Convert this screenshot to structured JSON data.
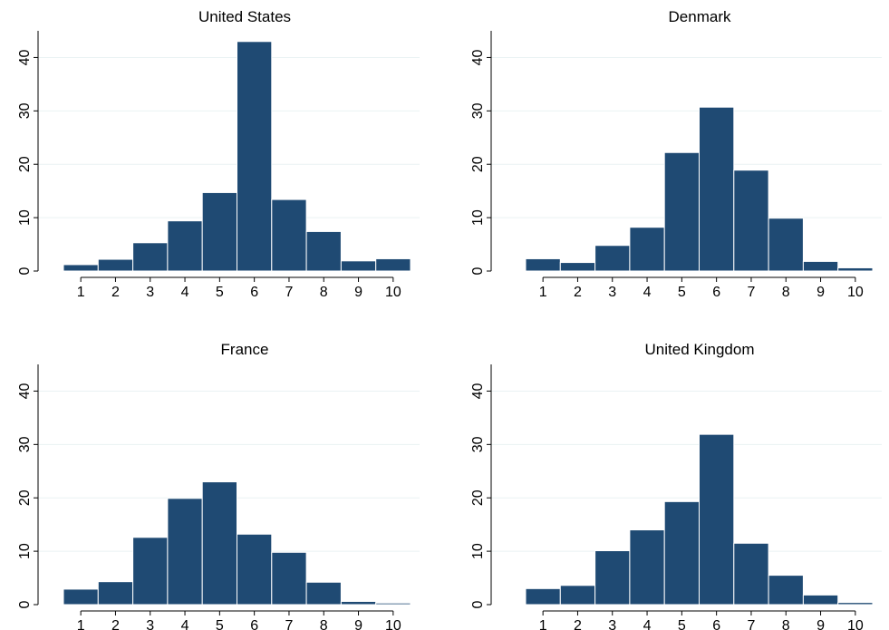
{
  "chart_data": [
    {
      "type": "bar",
      "title": "United States",
      "categories": [
        "1",
        "2",
        "3",
        "4",
        "5",
        "6",
        "7",
        "8",
        "9",
        "10"
      ],
      "values": [
        1.2,
        2.2,
        5.3,
        9.4,
        14.7,
        43.0,
        13.4,
        7.4,
        1.9,
        2.3
      ],
      "y_ticks": [
        0,
        10,
        20,
        30,
        40
      ],
      "ylim": [
        0,
        45
      ],
      "grid": true,
      "bar_color": "#1f4a73"
    },
    {
      "type": "bar",
      "title": "Denmark",
      "categories": [
        "1",
        "2",
        "3",
        "4",
        "5",
        "6",
        "7",
        "8",
        "9",
        "10"
      ],
      "values": [
        2.3,
        1.6,
        4.8,
        8.2,
        22.2,
        30.7,
        18.9,
        9.9,
        1.8,
        0.6
      ],
      "y_ticks": [
        0,
        10,
        20,
        30,
        40
      ],
      "ylim": [
        0,
        45
      ],
      "grid": true,
      "bar_color": "#1f4a73"
    },
    {
      "type": "bar",
      "title": "France",
      "categories": [
        "1",
        "2",
        "3",
        "4",
        "5",
        "6",
        "7",
        "8",
        "9",
        "10"
      ],
      "values": [
        2.9,
        4.3,
        12.6,
        19.9,
        23.0,
        13.2,
        9.8,
        4.2,
        0.6,
        0.3
      ],
      "y_ticks": [
        0,
        10,
        20,
        30,
        40
      ],
      "ylim": [
        0,
        45
      ],
      "grid": true,
      "bar_color": "#1f4a73"
    },
    {
      "type": "bar",
      "title": "United Kingdom",
      "categories": [
        "1",
        "2",
        "3",
        "4",
        "5",
        "6",
        "7",
        "8",
        "9",
        "10"
      ],
      "values": [
        3.0,
        3.6,
        10.1,
        14.0,
        19.3,
        31.9,
        11.5,
        5.5,
        1.8,
        0.4
      ],
      "y_ticks": [
        0,
        10,
        20,
        30,
        40
      ],
      "ylim": [
        0,
        45
      ],
      "grid": true,
      "bar_color": "#1f4a73"
    }
  ]
}
